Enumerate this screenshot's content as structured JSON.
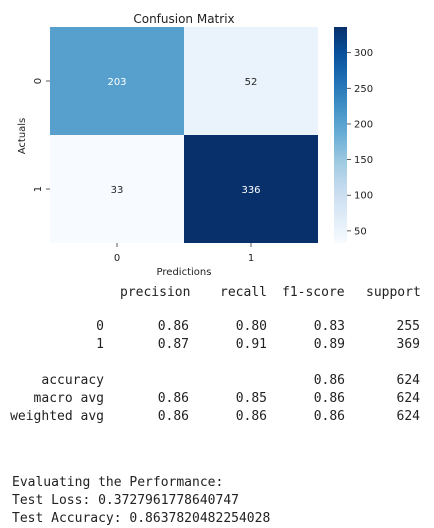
{
  "chart_data": {
    "type": "heatmap",
    "title": "Confusion Matrix",
    "xlabel": "Predictions",
    "ylabel": "Actuals",
    "x_tick_labels": [
      "0",
      "1"
    ],
    "y_tick_labels": [
      "0",
      "1"
    ],
    "values": [
      [
        203,
        52
      ],
      [
        33,
        336
      ]
    ],
    "colormap": "Blues",
    "value_range": [
      33,
      336
    ],
    "colorbar_ticks": [
      50,
      100,
      150,
      200,
      250,
      300
    ]
  },
  "report": {
    "headers": [
      "precision",
      "recall",
      "f1-score",
      "support"
    ],
    "rows": [
      {
        "label": "0",
        "precision": "0.86",
        "recall": "0.80",
        "f1": "0.83",
        "support": "255"
      },
      {
        "label": "1",
        "precision": "0.87",
        "recall": "0.91",
        "f1": "0.89",
        "support": "369"
      },
      {
        "label": "accuracy",
        "precision": "",
        "recall": "",
        "f1": "0.86",
        "support": "624"
      },
      {
        "label": "macro avg",
        "precision": "0.86",
        "recall": "0.85",
        "f1": "0.86",
        "support": "624"
      },
      {
        "label": "weighted avg",
        "precision": "0.86",
        "recall": "0.86",
        "f1": "0.86",
        "support": "624"
      }
    ]
  },
  "output": {
    "heading": "Evaluating the Performance:",
    "loss_line": "Test Loss: 0.3727961778640747",
    "accuracy_line": "Test Accuracy: 0.8637820482254028"
  }
}
